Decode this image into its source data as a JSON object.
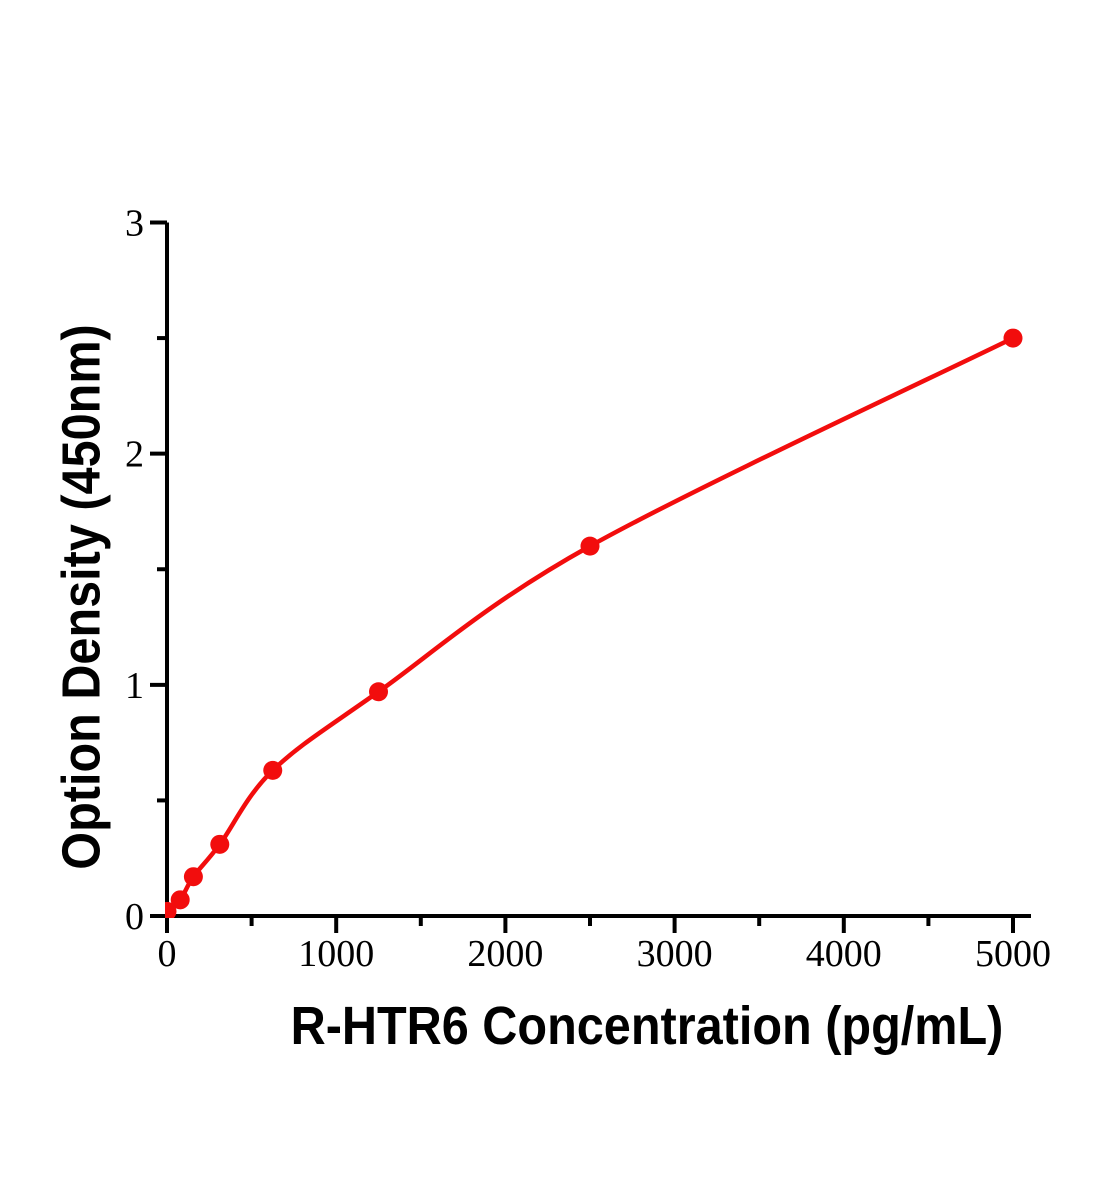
{
  "figure": {
    "background": "#ffffff",
    "text_color": "#000000"
  },
  "chart_data": {
    "type": "line",
    "title": "",
    "xlabel": "R-HTR6 Concentration (pg/mL)",
    "ylabel": "Option Density (450nm)",
    "x": [
      0,
      78,
      156,
      312,
      625,
      1250,
      2500,
      5000
    ],
    "y": [
      0.02,
      0.07,
      0.17,
      0.31,
      0.63,
      0.97,
      1.6,
      2.5
    ],
    "xlim": [
      0,
      5000
    ],
    "ylim": [
      0,
      3
    ],
    "x_ticks": [
      0,
      1000,
      2000,
      3000,
      4000,
      5000
    ],
    "x_minor_ticks": [
      500,
      1500,
      2500,
      3500,
      4500
    ],
    "y_ticks": [
      0,
      1,
      2,
      3
    ],
    "y_minor_ticks": [
      0.5,
      1.5,
      2.5
    ],
    "grid": false,
    "legend": false,
    "line_color": "#f20d0d",
    "marker_color": "#f20d0d",
    "marker_shape": "circle",
    "axis_color": "#000000"
  }
}
